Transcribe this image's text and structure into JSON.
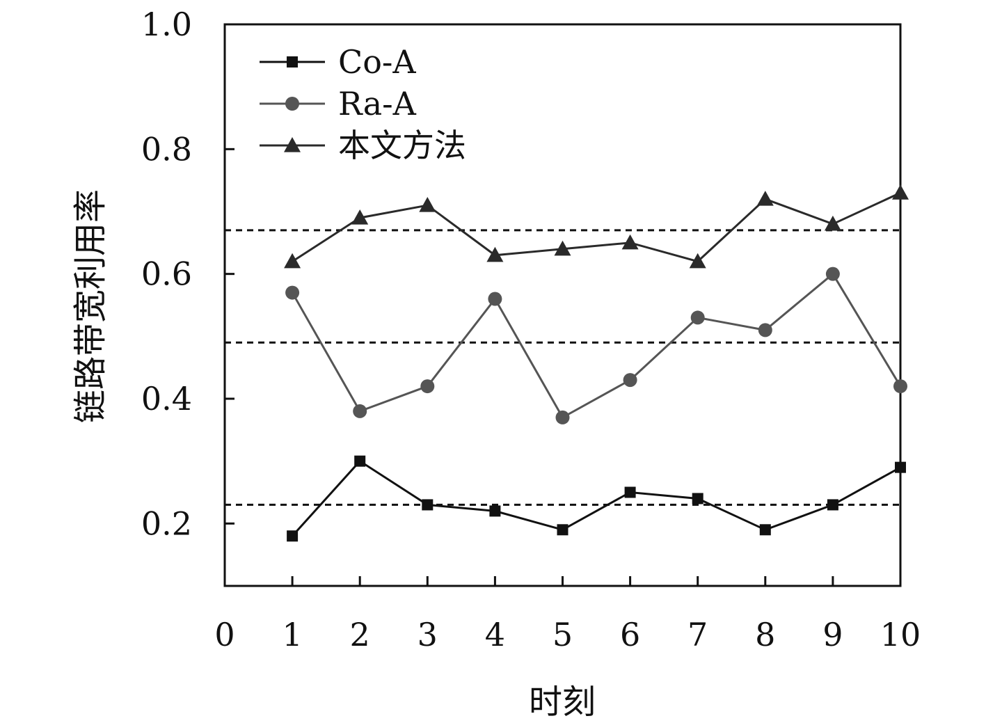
{
  "chart_data": {
    "type": "line",
    "xlabel": "时刻",
    "ylabel": "链路带宽利用率",
    "xlim": [
      0,
      10
    ],
    "ylim": [
      0.1,
      1.0
    ],
    "x_ticks": [
      "0",
      "1",
      "2",
      "3",
      "4",
      "5",
      "6",
      "7",
      "8",
      "9",
      "10"
    ],
    "y_ticks": [
      "0.2",
      "0.4",
      "0.6",
      "0.8",
      "1.0"
    ],
    "grid": false,
    "legend_position": "top-left",
    "x": [
      1,
      2,
      3,
      4,
      5,
      6,
      7,
      8,
      9,
      10
    ],
    "series": [
      {
        "name": "Co-A",
        "marker": "square",
        "color": "#111111",
        "values": [
          0.18,
          0.3,
          0.23,
          0.22,
          0.19,
          0.25,
          0.24,
          0.19,
          0.23,
          0.29
        ]
      },
      {
        "name": "Ra-A",
        "marker": "circle",
        "color": "#555555",
        "values": [
          0.57,
          0.38,
          0.42,
          0.56,
          0.37,
          0.43,
          0.53,
          0.51,
          0.6,
          0.42
        ]
      },
      {
        "name": "本文方法",
        "marker": "triangle",
        "color": "#2a2a2a",
        "values": [
          0.62,
          0.69,
          0.71,
          0.63,
          0.64,
          0.65,
          0.62,
          0.72,
          0.68,
          0.73
        ]
      }
    ],
    "reference_lines": [
      0.23,
      0.49,
      0.67
    ]
  }
}
